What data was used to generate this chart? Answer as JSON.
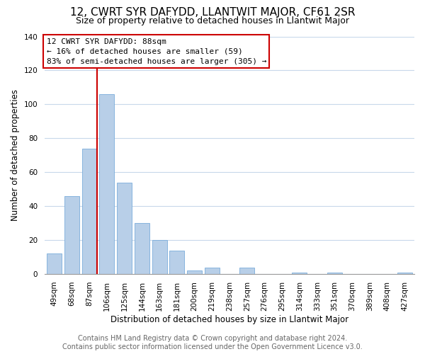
{
  "title": "12, CWRT SYR DAFYDD, LLANTWIT MAJOR, CF61 2SR",
  "subtitle": "Size of property relative to detached houses in Llantwit Major",
  "xlabel": "Distribution of detached houses by size in Llantwit Major",
  "ylabel": "Number of detached properties",
  "footer_line1": "Contains HM Land Registry data © Crown copyright and database right 2024.",
  "footer_line2": "Contains public sector information licensed under the Open Government Licence v3.0.",
  "bar_labels": [
    "49sqm",
    "68sqm",
    "87sqm",
    "106sqm",
    "125sqm",
    "144sqm",
    "163sqm",
    "181sqm",
    "200sqm",
    "219sqm",
    "238sqm",
    "257sqm",
    "276sqm",
    "295sqm",
    "314sqm",
    "333sqm",
    "351sqm",
    "370sqm",
    "389sqm",
    "408sqm",
    "427sqm"
  ],
  "bar_values": [
    12,
    46,
    74,
    106,
    54,
    30,
    20,
    14,
    2,
    4,
    0,
    4,
    0,
    0,
    1,
    0,
    1,
    0,
    0,
    0,
    1
  ],
  "bar_color": "#b8cfe8",
  "bar_edge_color": "#7aacda",
  "highlight_bar_index": 2,
  "highlight_line_color": "#cc0000",
  "annotation_text_line1": "12 CWRT SYR DAFYDD: 88sqm",
  "annotation_text_line2": "← 16% of detached houses are smaller (59)",
  "annotation_text_line3": "83% of semi-detached houses are larger (305) →",
  "annotation_box_color": "#ffffff",
  "annotation_border_color": "#cc0000",
  "ylim": [
    0,
    140
  ],
  "yticks": [
    0,
    20,
    40,
    60,
    80,
    100,
    120,
    140
  ],
  "background_color": "#ffffff",
  "grid_color": "#c8d8eb",
  "title_fontsize": 11,
  "subtitle_fontsize": 9,
  "axis_label_fontsize": 8.5,
  "tick_fontsize": 7.5,
  "footer_fontsize": 7
}
